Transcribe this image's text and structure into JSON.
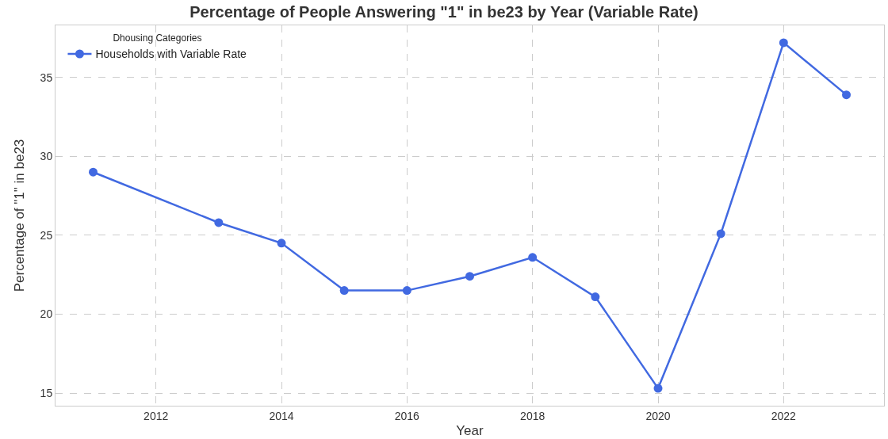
{
  "chart_data": {
    "type": "line",
    "title": "Percentage of People Answering \"1\" in be23 by Year (Variable Rate)",
    "xlabel": "Year",
    "ylabel": "Percentage of \"1\" in be23",
    "legend_title": "Dhousing Categories",
    "x": [
      2011,
      2013,
      2014,
      2015,
      2016,
      2017,
      2018,
      2019,
      2020,
      2021,
      2022,
      2023
    ],
    "series": [
      {
        "name": "Households with Variable Rate",
        "color": "#4169e1",
        "values": [
          29.0,
          25.8,
          24.5,
          21.5,
          21.5,
          22.4,
          23.6,
          21.1,
          15.3,
          25.1,
          37.2,
          33.9
        ]
      }
    ],
    "xlim": [
      2010.4,
      2023.6
    ],
    "xticks": [
      2012,
      2014,
      2016,
      2018,
      2020,
      2022
    ],
    "ylim": [
      14.2,
      38.3
    ],
    "yticks": [
      15,
      20,
      25,
      30,
      35
    ],
    "grid": true,
    "legend": "top left",
    "marker": "circle",
    "line_style": "solid"
  }
}
